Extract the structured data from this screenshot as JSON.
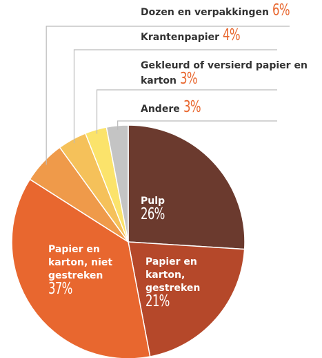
{
  "chart_data": {
    "type": "pie",
    "categories": [
      "Pulp",
      "Papier en karton, gestreken",
      "Papier en karton, niet gestreken",
      "Dozen en verpakkingen",
      "Krantenpapier",
      "Gekleurd of versierd papier en karton",
      "Andere"
    ],
    "values": [
      26,
      21,
      37,
      6,
      4,
      3,
      3
    ],
    "value_labels": [
      "26%",
      "21%",
      "37%",
      "6%",
      "4%",
      "3%",
      "3%"
    ],
    "colors": [
      "#6b3a2e",
      "#b5482a",
      "#e8672f",
      "#ef9a4a",
      "#f5c15a",
      "#fbe36b",
      "#c4c4c4"
    ]
  }
}
